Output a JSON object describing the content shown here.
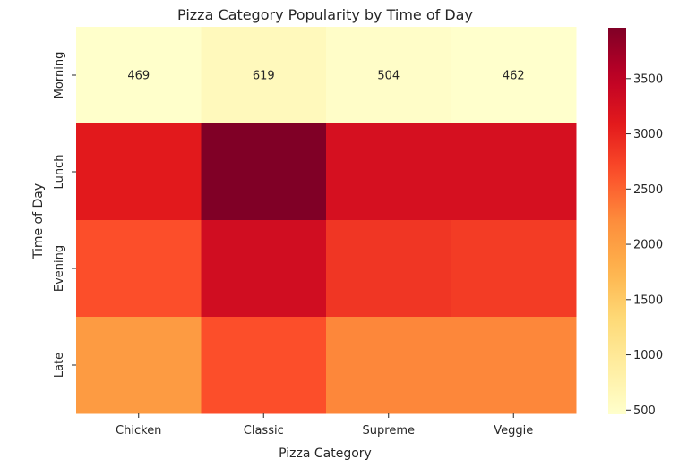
{
  "chart_data": {
    "type": "heatmap",
    "title": "Pizza Category Popularity by Time of Day",
    "xlabel": "Pizza Category",
    "ylabel": "Time of Day",
    "x_categories": [
      "Chicken",
      "Classic",
      "Supreme",
      "Veggie"
    ],
    "y_categories": [
      "Morning",
      "Lunch",
      "Evening",
      "Late"
    ],
    "values": [
      [
        469,
        619,
        504,
        462
      ],
      [
        3100,
        3960,
        3250,
        3250
      ],
      [
        2650,
        3300,
        2850,
        2800
      ],
      [
        2050,
        2650,
        2250,
        2250
      ]
    ],
    "annotated_rows": [
      "Morning"
    ],
    "colormap": "YlOrRd",
    "colorbar": {
      "min": 462,
      "max": 3960,
      "ticks": [
        500,
        1000,
        1500,
        2000,
        2500,
        3000,
        3500
      ]
    }
  }
}
